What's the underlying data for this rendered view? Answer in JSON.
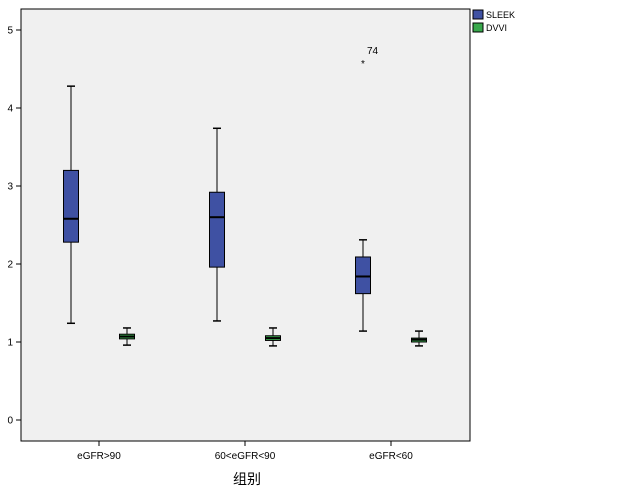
{
  "chart_data": {
    "type": "box",
    "xlabel": "组别",
    "ylabel": "",
    "ylim": [
      -0.25,
      5.25
    ],
    "yticks": [
      0,
      1,
      2,
      3,
      4,
      5
    ],
    "categories": [
      "eGFR>90",
      "60<eGFR<90",
      "eGFR<60"
    ],
    "legend_position": "top-right",
    "series": [
      {
        "name": "SLEEK",
        "color": "#3f51a3",
        "boxes": [
          {
            "min": 1.24,
            "q1": 2.28,
            "median": 2.58,
            "q3": 3.2,
            "max": 4.28
          },
          {
            "min": 1.27,
            "q1": 1.96,
            "median": 2.6,
            "q3": 2.92,
            "max": 3.74
          },
          {
            "min": 1.14,
            "q1": 1.62,
            "median": 1.84,
            "q3": 2.09,
            "max": 2.31
          }
        ]
      },
      {
        "name": "DVVI",
        "color": "#39a84c",
        "boxes": [
          {
            "min": 0.96,
            "q1": 1.04,
            "median": 1.07,
            "q3": 1.1,
            "max": 1.18
          },
          {
            "min": 0.95,
            "q1": 1.02,
            "median": 1.05,
            "q3": 1.08,
            "max": 1.18
          },
          {
            "min": 0.95,
            "q1": 1.0,
            "median": 1.03,
            "q3": 1.05,
            "max": 1.14
          }
        ]
      }
    ],
    "outliers": [
      {
        "series": "SLEEK",
        "category": "eGFR<60",
        "value": 4.6,
        "label": "74",
        "marker": "*"
      }
    ]
  }
}
